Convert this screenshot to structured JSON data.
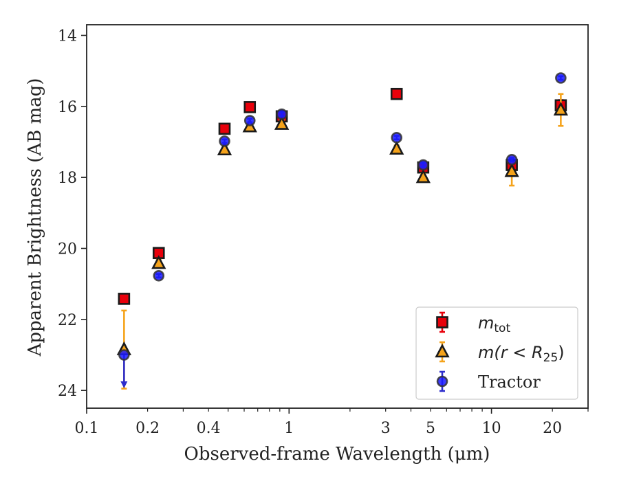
{
  "chart_data": {
    "type": "scatter",
    "title": "",
    "xlabel": "Observed-frame Wavelength (μm)",
    "ylabel": "Apparent Brightness (AB mag)",
    "xscale": "log",
    "xlim": [
      0.1,
      30
    ],
    "ylim": [
      24.5,
      13.7
    ],
    "y_inverted": true,
    "x_ticks": [
      0.1,
      0.2,
      0.4,
      1,
      3,
      5,
      10,
      20
    ],
    "x_tick_labels": [
      "0.1",
      "0.2",
      "0.4",
      "1",
      "3",
      "5",
      "10",
      "20"
    ],
    "y_ticks": [
      14,
      16,
      18,
      20,
      22,
      24
    ],
    "y_tick_labels": [
      "14",
      "16",
      "18",
      "20",
      "22",
      "24"
    ],
    "grid": false,
    "legend_position": "lower-right",
    "series": [
      {
        "name": "m_tot",
        "legend_main": "m",
        "legend_sub": "tot",
        "marker": "square",
        "fill_color": "#e8000b",
        "edge_color": "#1a1a1a",
        "errbar_color": "#e8000b",
        "x": [
          0.153,
          0.227,
          0.48,
          0.64,
          0.92,
          3.4,
          4.6,
          12.6,
          22.0
        ],
        "y": [
          21.42,
          20.13,
          16.63,
          16.02,
          16.28,
          15.65,
          17.72,
          17.65,
          15.97
        ],
        "yerr": [
          0.05,
          0.05,
          0.05,
          0.05,
          0.05,
          0.05,
          0.1,
          0.2,
          0.15
        ]
      },
      {
        "name": "m(r < R_25)",
        "legend_main": "m(r < R",
        "legend_sub": "25",
        "legend_tail": ")",
        "marker": "triangle",
        "fill_color": "#f5a31b",
        "edge_color": "#1a1a1a",
        "errbar_color": "#f5a31b",
        "x": [
          0.153,
          0.227,
          0.48,
          0.64,
          0.92,
          3.4,
          4.6,
          12.6,
          22.0
        ],
        "y": [
          22.85,
          20.42,
          17.22,
          16.57,
          16.5,
          17.2,
          18.0,
          17.83,
          16.1
        ],
        "yerr_low": [
          1.1,
          0.1,
          0.1,
          0.1,
          0.1,
          0.1,
          0.1,
          0.4,
          0.45
        ],
        "yerr_high": [
          1.1,
          0.1,
          0.1,
          0.1,
          0.1,
          0.1,
          0.1,
          0.4,
          0.45
        ]
      },
      {
        "name": "Tractor",
        "marker": "circle",
        "fill_color": "#1a1aff",
        "edge_color": "#333333",
        "errbar_color": "#2d2dcc",
        "x": [
          0.153,
          0.227,
          0.48,
          0.64,
          0.92,
          3.4,
          4.6,
          12.6,
          22.0
        ],
        "y": [
          23.0,
          20.77,
          16.98,
          16.4,
          16.22,
          16.88,
          17.65,
          17.5,
          15.2
        ],
        "yerr": [
          0.05,
          0.05,
          0.05,
          0.05,
          0.05,
          0.05,
          0.05,
          0.05,
          0.05
        ],
        "upper_limit_index": 0,
        "upper_limit_to": 23.9
      }
    ]
  }
}
